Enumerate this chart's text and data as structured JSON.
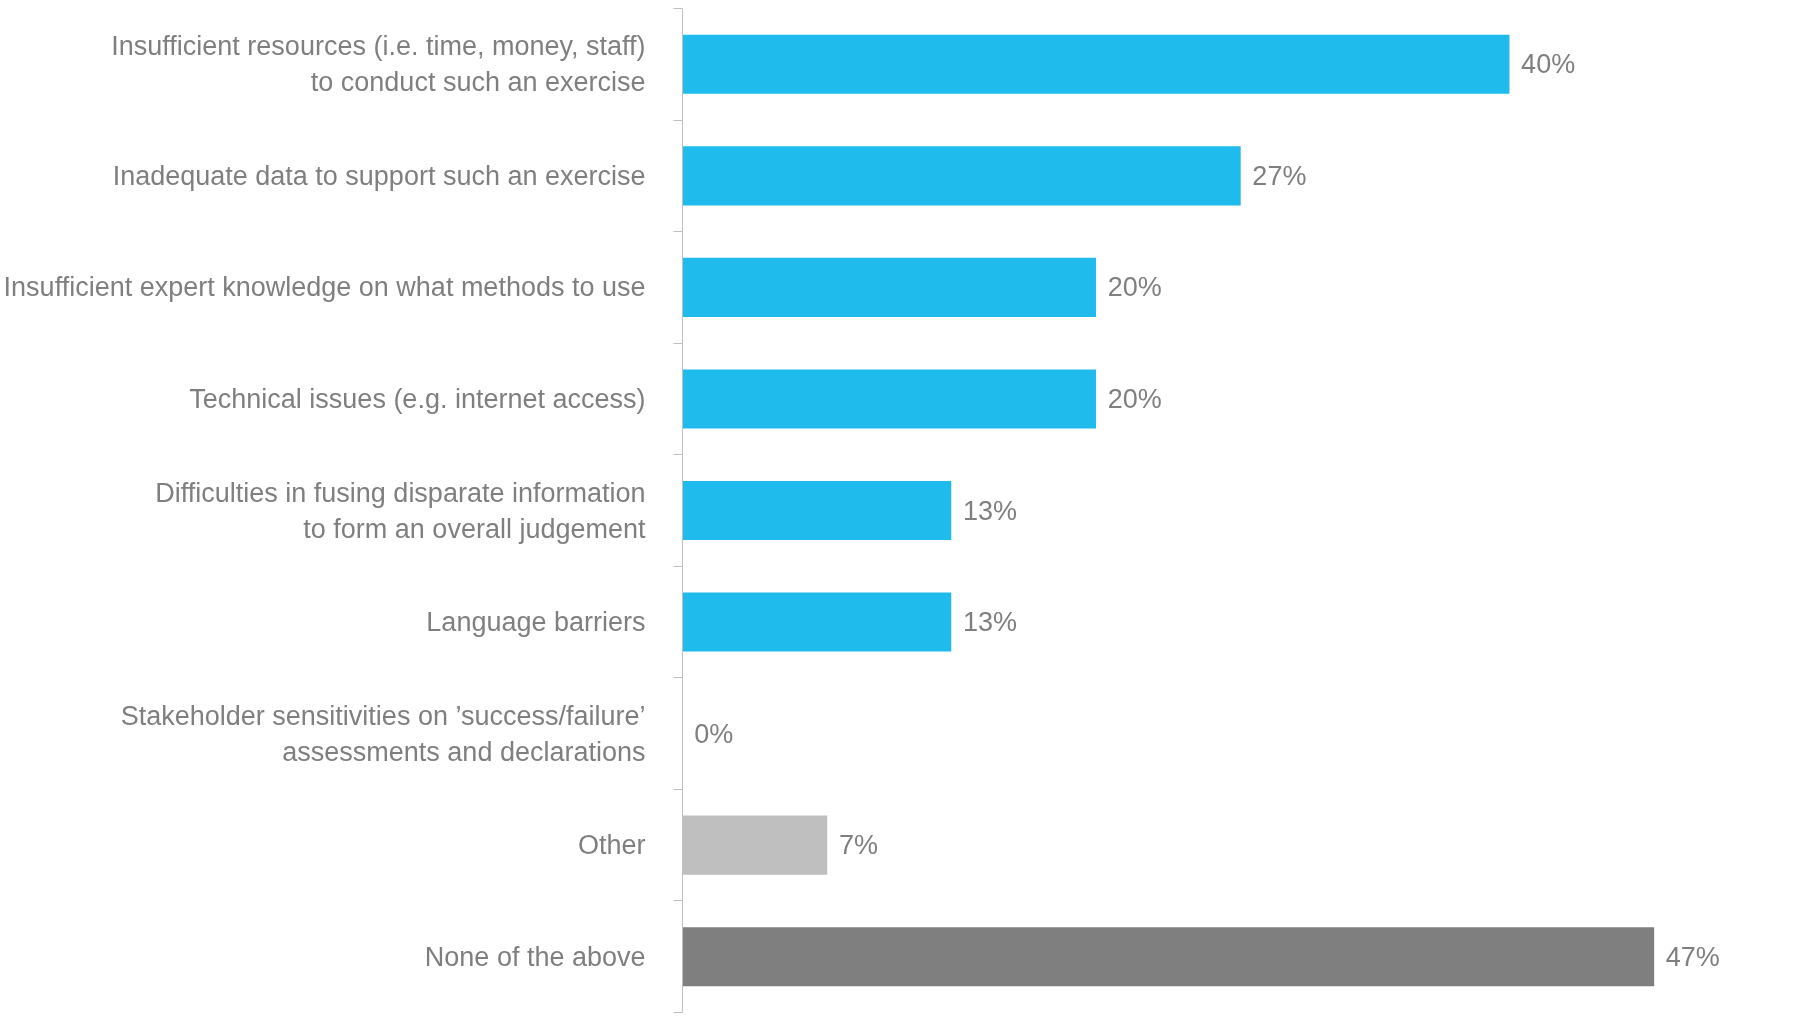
{
  "chart_data": {
    "type": "bar",
    "orientation": "horizontal",
    "categories": [
      "Insufficient resources (i.e. time, money, staff)\nto conduct such an exercise",
      "Inadequate data to support such an exercise",
      "Insufficient expert knowledge on what methods to use",
      "Technical issues (e.g. internet access)",
      "Difficulties in fusing disparate information\nto form an overall judgement",
      "Language barriers",
      "Stakeholder sensitivities on ’success/failure’\nassessments and declarations",
      "Other",
      "None of the above"
    ],
    "values": [
      40,
      27,
      20,
      20,
      13,
      13,
      0,
      7,
      47
    ],
    "colors": [
      "#1fbbec",
      "#1fbbec",
      "#1fbbec",
      "#1fbbec",
      "#1fbbec",
      "#1fbbec",
      "#1fbbec",
      "#bfbfbf",
      "#7f7f7f"
    ],
    "value_labels": [
      "40%",
      "27%",
      "20%",
      "20%",
      "13%",
      "13%",
      "0%",
      "7%",
      "47%"
    ],
    "grid": false
  }
}
